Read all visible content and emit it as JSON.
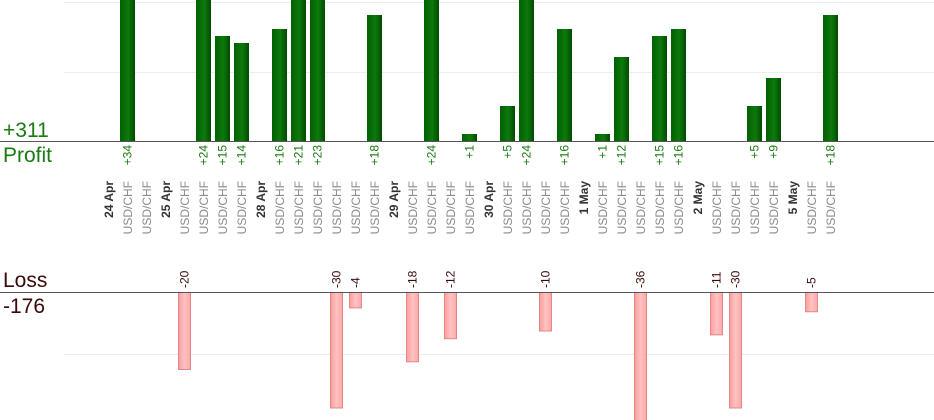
{
  "summary": {
    "profit_total": "+311",
    "profit_label": "Profit",
    "loss_label": "Loss",
    "loss_total": "-176"
  },
  "colors": {
    "profit_bar": "#0d6e0d",
    "profit_text": "#1a7a12",
    "loss_bar": "#ffb3b3",
    "loss_border": "#e08888",
    "loss_text": "#3a0a0a"
  },
  "chart_data": {
    "type": "bar",
    "instrument": "USD/CHF",
    "columns": [
      {
        "date": "24 Apr"
      },
      {
        "symbol": "USD/CHF",
        "profit": 34
      },
      {
        "symbol": "USD/CHF"
      },
      {
        "date": "25 Apr"
      },
      {
        "symbol": "USD/CHF",
        "loss": -20
      },
      {
        "symbol": "USD/CHF",
        "profit": 24
      },
      {
        "symbol": "USD/CHF",
        "profit": 15
      },
      {
        "symbol": "USD/CHF",
        "profit": 14
      },
      {
        "date": "28 Apr"
      },
      {
        "symbol": "USD/CHF",
        "profit": 16
      },
      {
        "symbol": "USD/CHF",
        "profit": 21
      },
      {
        "symbol": "USD/CHF",
        "profit": 23
      },
      {
        "symbol": "USD/CHF",
        "loss": -30
      },
      {
        "symbol": "USD/CHF",
        "loss": -4
      },
      {
        "symbol": "USD/CHF",
        "profit": 18
      },
      {
        "date": "29 Apr"
      },
      {
        "symbol": "USD/CHF",
        "loss": -18
      },
      {
        "symbol": "USD/CHF",
        "profit": 24
      },
      {
        "symbol": "USD/CHF",
        "loss": -12
      },
      {
        "symbol": "USD/CHF",
        "profit": 1
      },
      {
        "date": "30 Apr"
      },
      {
        "symbol": "USD/CHF",
        "profit": 5
      },
      {
        "symbol": "USD/CHF",
        "profit": 24
      },
      {
        "symbol": "USD/CHF",
        "loss": -10
      },
      {
        "symbol": "USD/CHF",
        "profit": 16
      },
      {
        "date": "1 May"
      },
      {
        "symbol": "USD/CHF",
        "profit": 1
      },
      {
        "symbol": "USD/CHF",
        "profit": 12
      },
      {
        "symbol": "USD/CHF",
        "loss": -36
      },
      {
        "symbol": "USD/CHF",
        "profit": 15
      },
      {
        "symbol": "USD/CHF",
        "profit": 16
      },
      {
        "date": "2 May"
      },
      {
        "symbol": "USD/CHF",
        "loss": -11
      },
      {
        "symbol": "USD/CHF",
        "loss": -30
      },
      {
        "symbol": "USD/CHF",
        "profit": 5
      },
      {
        "symbol": "USD/CHF",
        "profit": 9
      },
      {
        "date": "5 May"
      },
      {
        "symbol": "USD/CHF",
        "loss": -5
      },
      {
        "symbol": "USD/CHF",
        "profit": 18
      }
    ],
    "profit_ylim": [
      0,
      20
    ],
    "loss_ylim": [
      -30,
      0
    ],
    "grid": true
  }
}
